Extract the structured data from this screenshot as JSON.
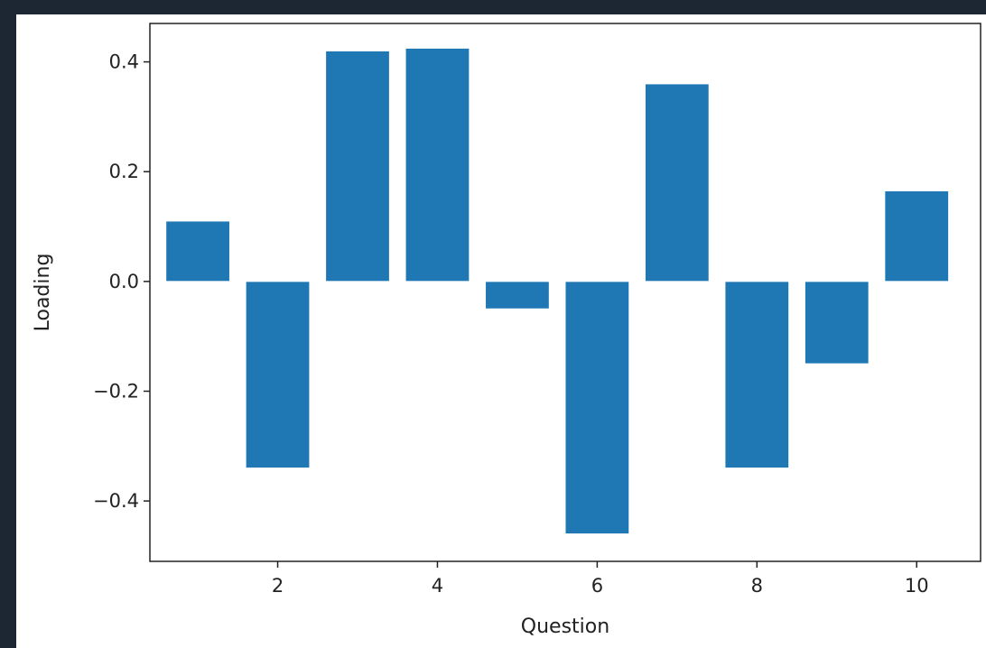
{
  "chart_data": {
    "type": "bar",
    "title": "",
    "xlabel": "Question",
    "ylabel": "Loading",
    "categories": [
      1,
      2,
      3,
      4,
      5,
      6,
      7,
      8,
      9,
      10
    ],
    "values": [
      0.11,
      -0.34,
      0.42,
      0.425,
      -0.05,
      -0.46,
      0.36,
      -0.34,
      -0.15,
      0.165
    ],
    "xlim": [
      0.4,
      10.8
    ],
    "ylim": [
      -0.51,
      0.47
    ],
    "xticks": [
      2,
      4,
      6,
      8,
      10
    ],
    "xtick_labels": [
      "2",
      "4",
      "6",
      "8",
      "10"
    ],
    "yticks": [
      -0.4,
      -0.2,
      0.0,
      0.2,
      0.4
    ],
    "ytick_labels": [
      "−0.4",
      "−0.2",
      "0.0",
      "0.2",
      "0.4"
    ],
    "bar_color": "#1f77b4",
    "grid": false,
    "legend": "none"
  }
}
